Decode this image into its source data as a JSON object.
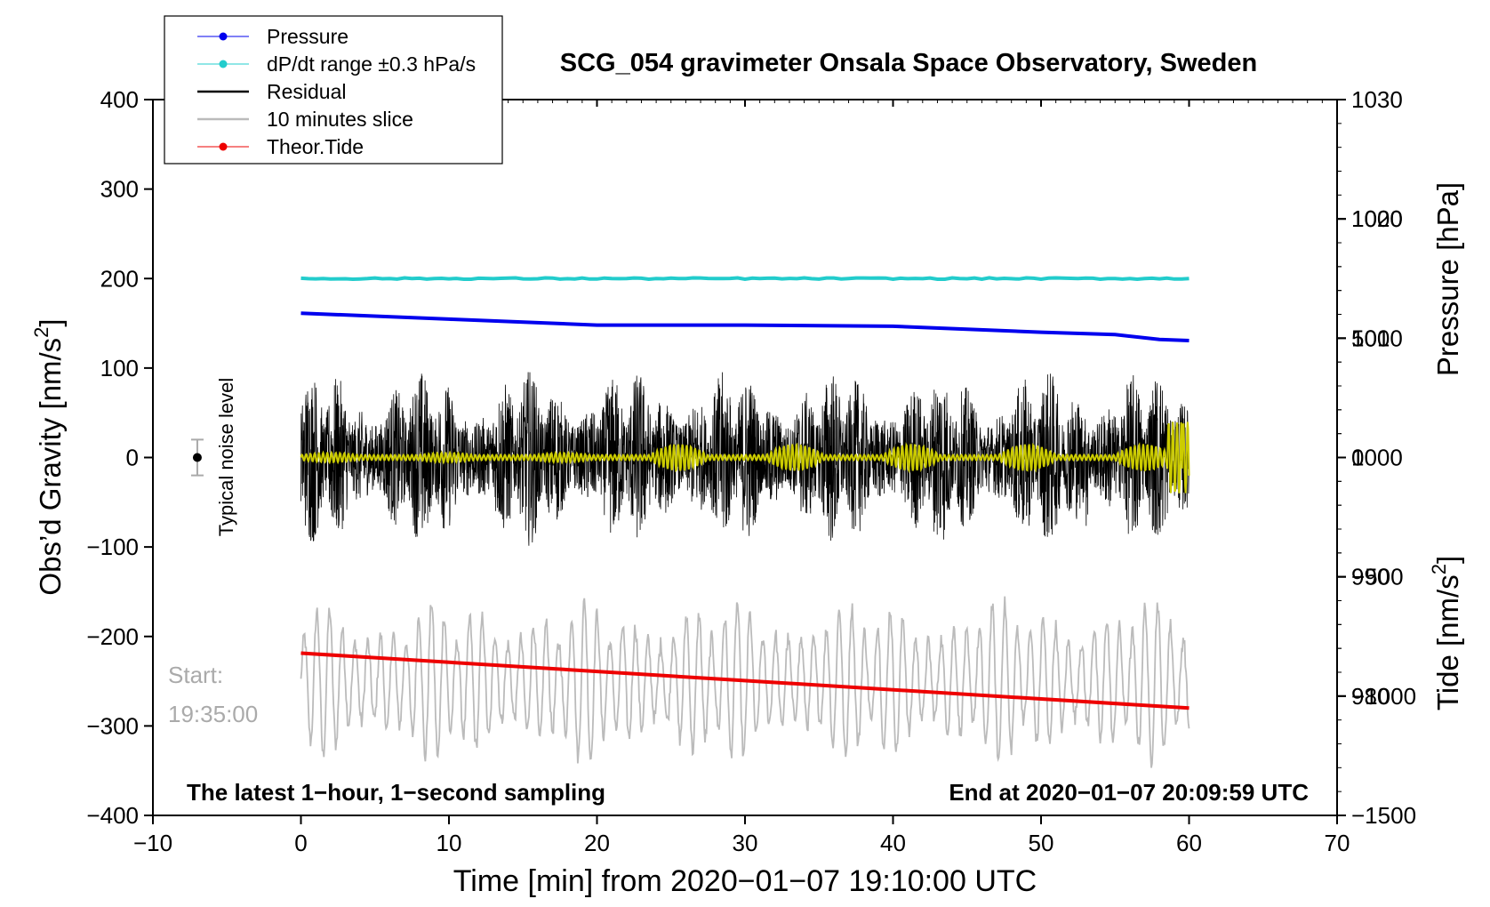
{
  "chart_data": {
    "type": "line",
    "title": "SCG_054 gravimeter Onsala Space Observatory, Sweden",
    "xlabel": "Time [min] from 2020−01−07 19:10:00 UTC",
    "xlim": [
      -10,
      70
    ],
    "x_ticks": [
      "−10",
      "0",
      "10",
      "20",
      "30",
      "40",
      "50",
      "60",
      "70"
    ],
    "left_axis": {
      "label": "Obs’d Gravity [nm/s",
      "label_sup": "2",
      "label_close": "]",
      "ylim": [
        -400,
        400
      ],
      "ticks": [
        "400",
        "300",
        "200",
        "100",
        "0",
        "−100",
        "−200",
        "−300",
        "−400"
      ]
    },
    "pressure_axis": {
      "label": "Pressure [hPa]",
      "range": [
        970,
        1030
      ],
      "ticks": [
        "1030",
        "1020",
        "1010",
        "1000",
        "990",
        "980"
      ]
    },
    "tide_axis": {
      "label": "Tide [nm/s",
      "label_sup": "2",
      "label_close": "]",
      "range": [
        -1500,
        1500
      ],
      "ticks": [
        "1000",
        "500",
        "0",
        "−500",
        "−1000",
        "−1500"
      ]
    },
    "series": [
      {
        "name": "Pressure",
        "axis": "pressure",
        "color": "#0000ee",
        "x": [
          0,
          10,
          20,
          30,
          40,
          50,
          55,
          58,
          60
        ],
        "values": [
          1012.1,
          1011.6,
          1011.1,
          1011.1,
          1011.0,
          1010.5,
          1010.3,
          1009.9,
          1009.8
        ]
      },
      {
        "name": "dP/dt range ±0.3 hPa/s",
        "axis": "gravity",
        "color": "#22cccc",
        "x": [
          0,
          60
        ],
        "values": [
          200,
          200
        ]
      },
      {
        "name": "Residual",
        "axis": "gravity",
        "color": "#000000",
        "amplitude_nm_s2": 100
      },
      {
        "name": "10 minutes slice",
        "axis": "gravity",
        "color": "#bbbbbb",
        "center": -250,
        "amplitude_nm_s2": 90
      },
      {
        "name": "Theor.Tide",
        "axis": "tide",
        "color": "#ee0000",
        "x": [
          0,
          60
        ],
        "values": [
          -820,
          -1050
        ]
      }
    ],
    "smoothed_line_color": "#cccc00",
    "noise_marker": {
      "x": -7,
      "y": 0,
      "err": 20,
      "label": "Typical noise level"
    },
    "start_label": "Start:",
    "start_time": "19:35:00",
    "bottom_left_note": "The latest 1−hour, 1−second sampling",
    "bottom_right_note": "End at 2020−01−07 20:09:59 UTC"
  }
}
